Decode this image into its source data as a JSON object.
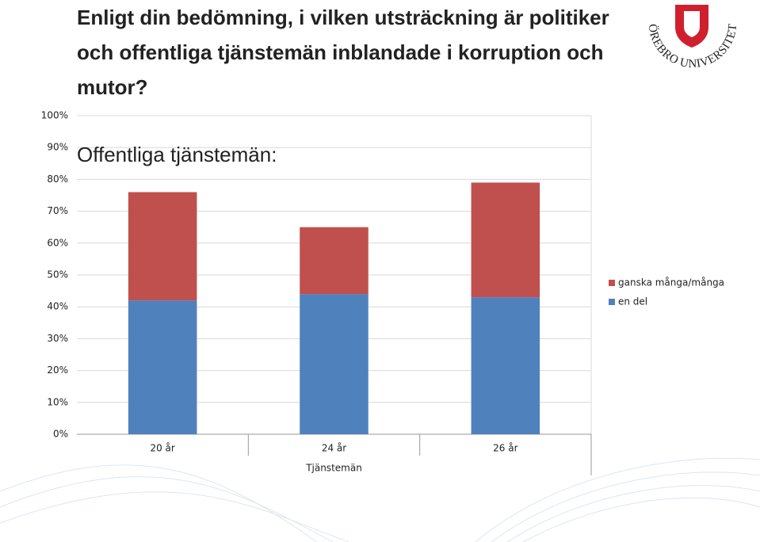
{
  "title": "Enligt din bedömning, i vilken utsträckning är politiker och offentliga tjänstemän inblandade i korruption och mutor?",
  "logo_text": "ÖREBRO UNIVERSITET",
  "chart_data": {
    "type": "stacked_bar",
    "subtitle": "Offentliga tjänstemän:",
    "x_label": "Tjänstemän",
    "categories": [
      "20 år",
      "24 år",
      "26 år"
    ],
    "series": [
      {
        "name": "en del",
        "color": "#4f81bd",
        "values": [
          42,
          44,
          43
        ]
      },
      {
        "name": "ganska många/många",
        "color": "#c0504d",
        "values": [
          34,
          21,
          36
        ]
      }
    ],
    "ylim": [
      0,
      100
    ],
    "yticks": [
      {
        "value": 0,
        "label": "0%"
      },
      {
        "value": 10,
        "label": "10%"
      },
      {
        "value": 20,
        "label": "20%"
      },
      {
        "value": 30,
        "label": "30%"
      },
      {
        "value": 40,
        "label": "40%"
      },
      {
        "value": 50,
        "label": "50%"
      },
      {
        "value": 60,
        "label": "60%"
      },
      {
        "value": 70,
        "label": "70%"
      },
      {
        "value": 80,
        "label": "80%"
      },
      {
        "value": 90,
        "label": "90%"
      },
      {
        "value": 100,
        "label": "100%"
      }
    ],
    "grid": true
  }
}
